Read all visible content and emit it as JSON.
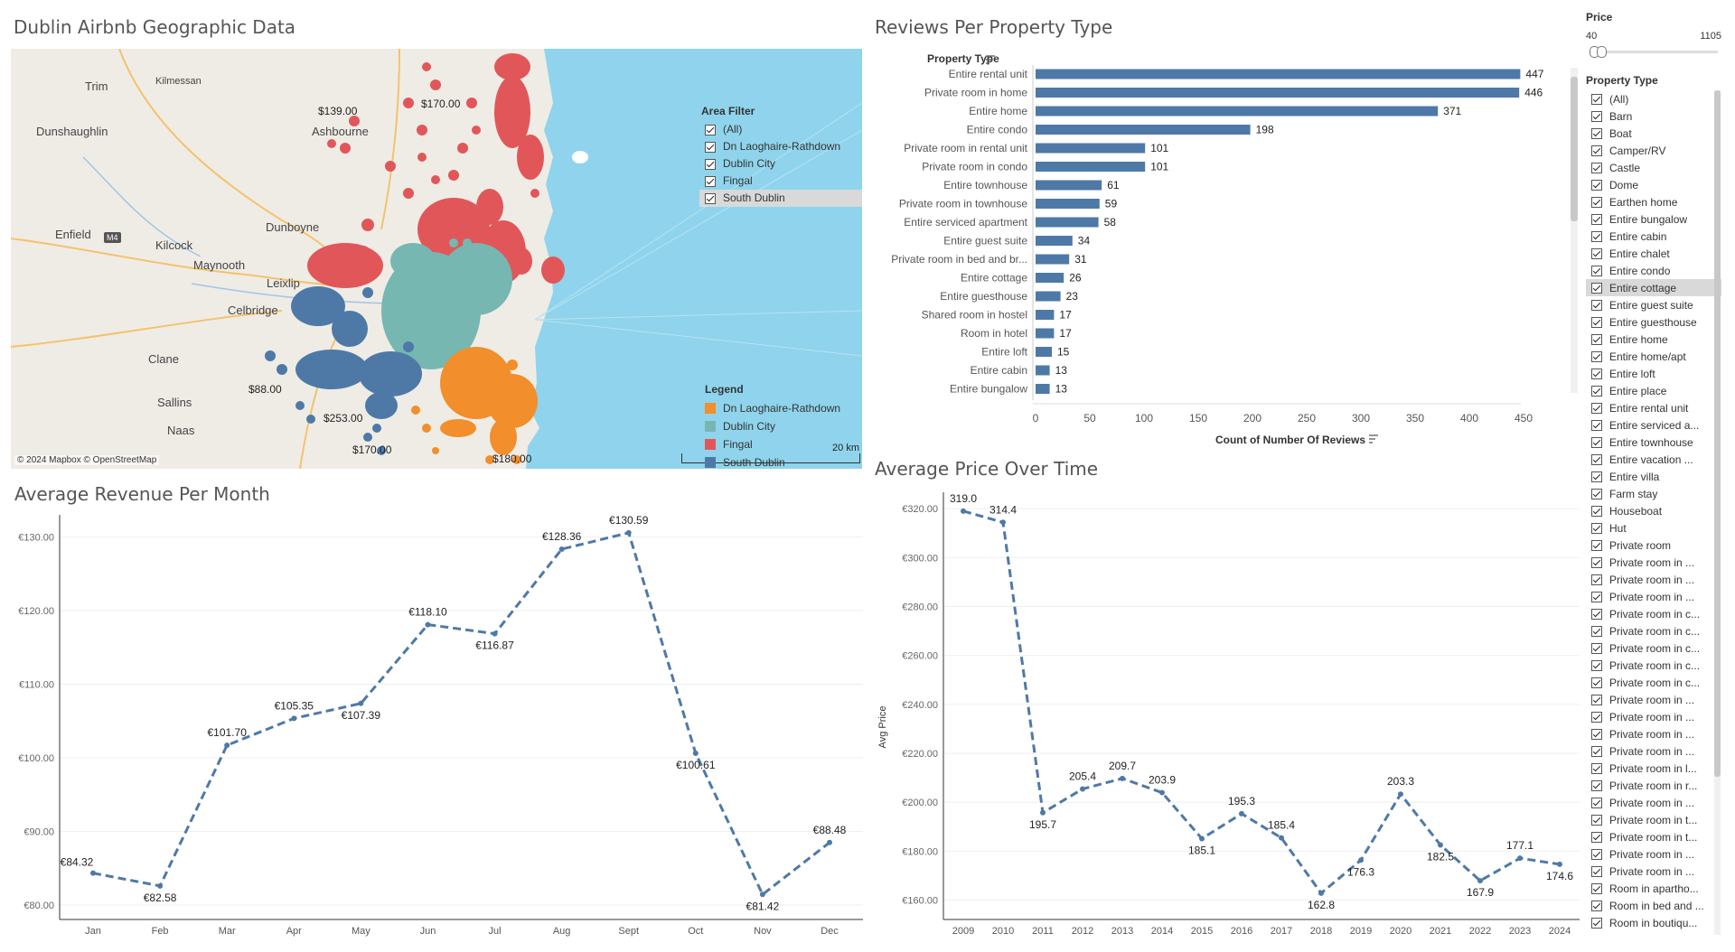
{
  "titles": {
    "map": "Dublin Airbnb Geographic Data",
    "reviews": "Reviews Per Property Type",
    "revenue": "Average Revenue Per Month",
    "price": "Average Price Over Time"
  },
  "map": {
    "places": [
      "Trim",
      "Kilmessan",
      "Dunshaughlin",
      "Ashbourne",
      "Dunboyne",
      "Enfield",
      "Kilcock",
      "Maynooth",
      "Leixlip",
      "Celbridge",
      "Clane",
      "Sallins",
      "Naas"
    ],
    "road_badge": "M4",
    "price_labels": [
      "$139.00",
      "$170.00",
      "$88.00",
      "$253.00",
      "$170.00",
      "$180.00"
    ],
    "attribution": "© 2024 Mapbox © OpenStreetMap",
    "scale": "20 km",
    "area_filter": {
      "title": "Area Filter",
      "items": [
        "(All)",
        "Dn Laoghaire-Rathdown",
        "Dublin City",
        "Fingal",
        "South Dublin"
      ],
      "selected_index": 4
    },
    "legend": {
      "title": "Legend",
      "items": [
        {
          "label": "Dn Laoghaire-Rathdown",
          "color": "#f28e2b"
        },
        {
          "label": "Dublin City",
          "color": "#76b7b2"
        },
        {
          "label": "Fingal",
          "color": "#e15759"
        },
        {
          "label": "South Dublin",
          "color": "#4e79a7"
        }
      ]
    }
  },
  "chart_data": [
    {
      "type": "bar",
      "orientation": "horizontal",
      "title": "Reviews Per Property Type",
      "category_header": "Property Type",
      "xlabel": "Count of Number Of Reviews",
      "xlim": [
        0,
        450
      ],
      "xticks": [
        0,
        50,
        100,
        150,
        200,
        250,
        300,
        350,
        400,
        450
      ],
      "categories": [
        "Entire rental unit",
        "Private room in home",
        "Entire home",
        "Entire condo",
        "Private room in rental unit",
        "Private room in condo",
        "Entire townhouse",
        "Private room in townhouse",
        "Entire serviced apartment",
        "Entire guest suite",
        "Private room in bed and br...",
        "Entire cottage",
        "Entire guesthouse",
        "Shared room in hostel",
        "Room in hotel",
        "Entire loft",
        "Entire cabin",
        "Entire bungalow"
      ],
      "values": [
        447,
        446,
        371,
        198,
        101,
        101,
        61,
        59,
        58,
        34,
        31,
        26,
        23,
        17,
        17,
        15,
        13,
        13
      ],
      "color": "#4e79a7"
    },
    {
      "type": "line",
      "title": "Average Revenue Per Month",
      "categories": [
        "Jan",
        "Feb",
        "Mar",
        "Apr",
        "May",
        "Jun",
        "Jul",
        "Aug",
        "Sept",
        "Oct",
        "Nov",
        "Dec"
      ],
      "values": [
        84.32,
        82.58,
        101.7,
        105.35,
        107.39,
        118.1,
        116.87,
        128.36,
        130.59,
        100.61,
        81.42,
        88.48
      ],
      "labels": [
        "€84.32",
        "€82.58",
        "€101.70",
        "€105.35",
        "€107.39",
        "€118.10",
        "€116.87",
        "€128.36",
        "€130.59",
        "€100.61",
        "€81.42",
        "€88.48"
      ],
      "yticks": [
        "€80.00",
        "€90.00",
        "€100.00",
        "€110.00",
        "€120.00",
        "€130.00"
      ],
      "ylim": [
        79,
        131.8
      ],
      "line_style": "dashed",
      "color": "#4e79a7"
    },
    {
      "type": "line",
      "title": "Average Price Over Time",
      "ylabel": "Avg Price",
      "categories": [
        "2009",
        "2010",
        "2011",
        "2012",
        "2013",
        "2014",
        "2015",
        "2016",
        "2017",
        "2018",
        "2019",
        "2020",
        "2021",
        "2022",
        "2023",
        "2024"
      ],
      "values": [
        319.0,
        314.4,
        195.7,
        205.4,
        209.7,
        203.9,
        185.1,
        195.3,
        185.4,
        162.8,
        176.3,
        203.3,
        182.5,
        167.9,
        177.1,
        174.6
      ],
      "labels": [
        "319.0",
        "314.4",
        "195.7",
        "205.4",
        "209.7",
        "203.9",
        "185.1",
        "195.3",
        "185.4",
        "162.8",
        "176.3",
        "203.3",
        "182.5",
        "167.9",
        "177.1",
        "174.6"
      ],
      "yticks": [
        "€160.00",
        "€180.00",
        "€200.00",
        "€220.00",
        "€240.00",
        "€260.00",
        "€280.00",
        "€300.00",
        "€320.00"
      ],
      "ylim": [
        155,
        323
      ],
      "line_style": "dashed",
      "color": "#4e79a7"
    }
  ],
  "price_filter": {
    "title": "Price",
    "min": "40",
    "max": "1105"
  },
  "property_filter": {
    "title": "Property Type",
    "items": [
      "(All)",
      "Barn",
      "Boat",
      "Camper/RV",
      "Castle",
      "Dome",
      "Earthen home",
      "Entire bungalow",
      "Entire cabin",
      "Entire chalet",
      "Entire condo",
      "Entire cottage",
      "Entire guest suite",
      "Entire guesthouse",
      "Entire home",
      "Entire home/apt",
      "Entire loft",
      "Entire place",
      "Entire rental unit",
      "Entire serviced a...",
      "Entire townhouse",
      "Entire vacation ...",
      "Entire villa",
      "Farm stay",
      "Houseboat",
      "Hut",
      "Private room",
      "Private room in ...",
      "Private room in ...",
      "Private room in ...",
      "Private room in c...",
      "Private room in c...",
      "Private room in c...",
      "Private room in c...",
      "Private room in c...",
      "Private room in ...",
      "Private room in ...",
      "Private room in ...",
      "Private room in ...",
      "Private room in l...",
      "Private room in r...",
      "Private room in ...",
      "Private room in t...",
      "Private room in t...",
      "Private room in ...",
      "Private room in ...",
      "Room in apartho...",
      "Room in bed and ...",
      "Room in boutiqu..."
    ],
    "selected_index": 11
  }
}
